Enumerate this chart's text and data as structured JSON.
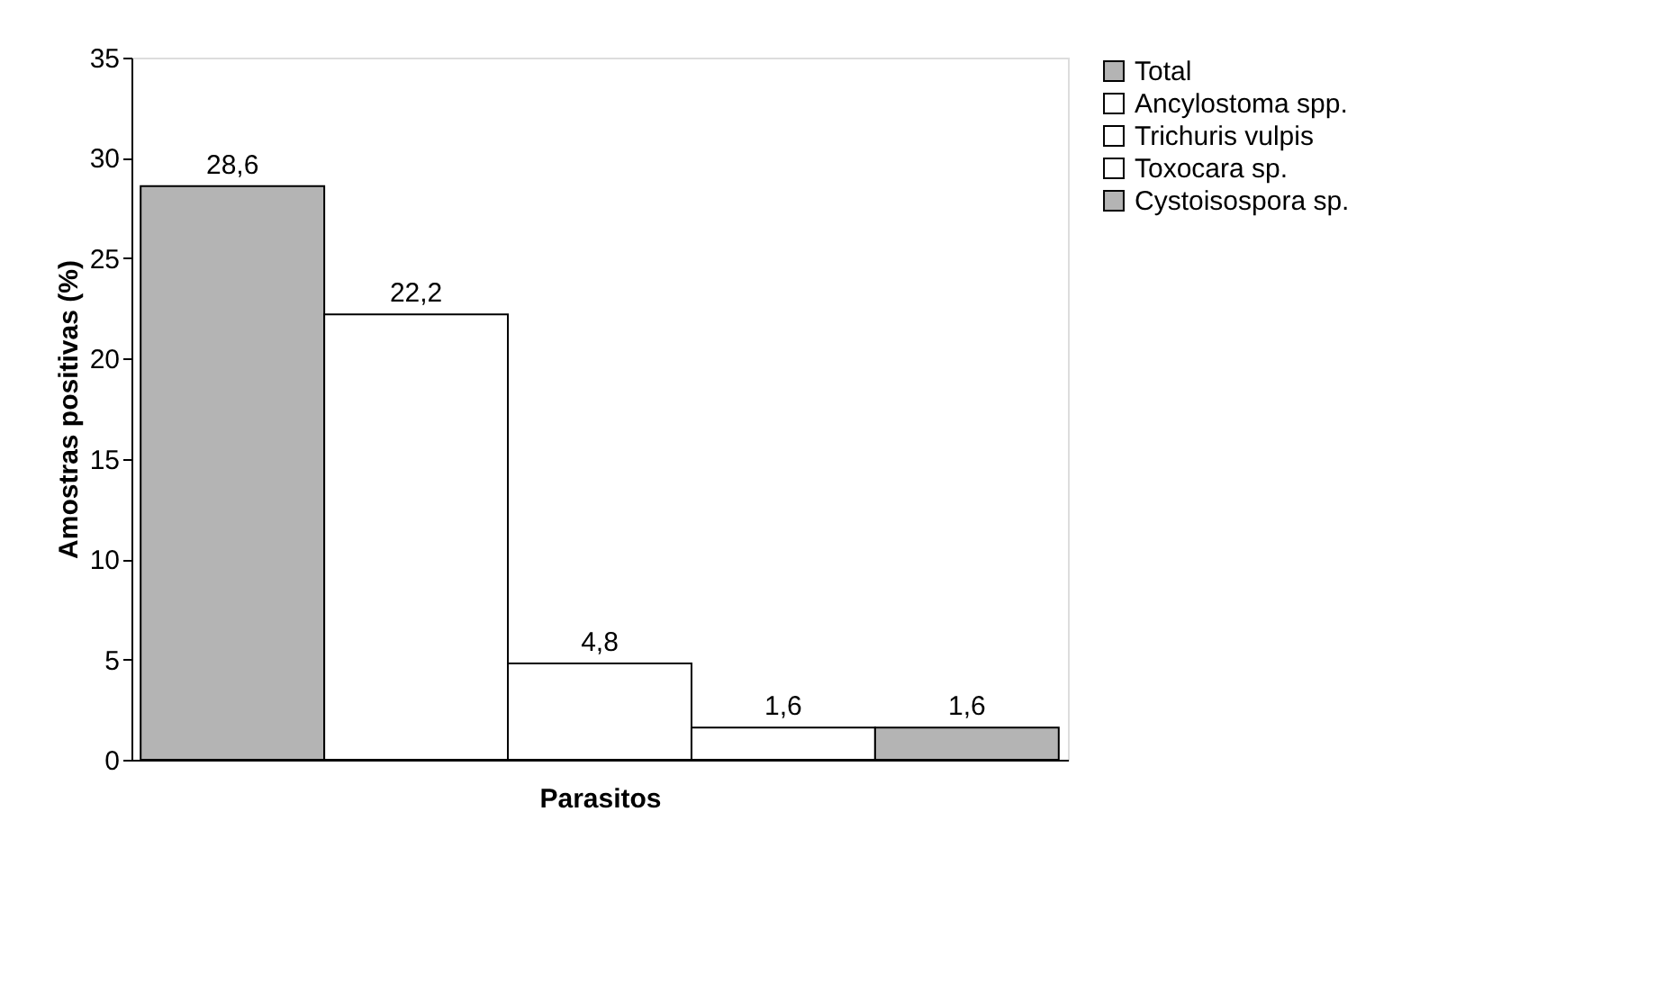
{
  "chart_data": {
    "type": "bar",
    "xlabel": "Parasitos",
    "ylabel": "Amostras positivas (%)",
    "categories": [
      null
    ],
    "series": [
      {
        "name": "Total",
        "color": "#b4b4b4",
        "values": [
          28.6
        ],
        "value_labels": [
          "28,6"
        ]
      },
      {
        "name": "Ancylostoma spp.",
        "color": "#ffffff",
        "values": [
          22.2
        ],
        "value_labels": [
          "22,2"
        ]
      },
      {
        "name": "Trichuris vulpis",
        "color": "#ffffff",
        "values": [
          4.8
        ],
        "value_labels": [
          "4,8"
        ]
      },
      {
        "name": "Toxocara sp.",
        "color": "#ffffff",
        "values": [
          1.6
        ],
        "value_labels": [
          "1,6"
        ]
      },
      {
        "name": "Cystoisospora sp.",
        "color": "#b4b4b4",
        "values": [
          1.6
        ],
        "value_labels": [
          "1,6"
        ]
      }
    ],
    "ylim": [
      0,
      35
    ],
    "yticks": [
      0,
      5,
      10,
      15,
      20,
      25,
      30,
      35
    ],
    "grid": false,
    "legend": "right",
    "tick_labels": "y"
  }
}
